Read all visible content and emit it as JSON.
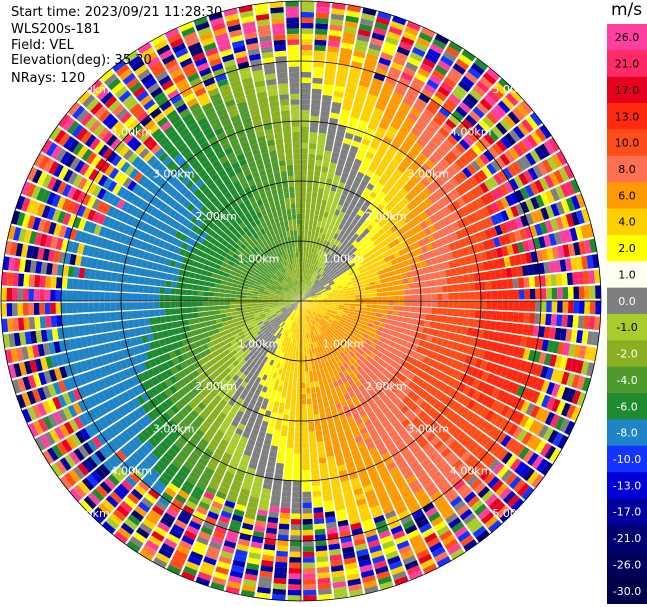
{
  "info": {
    "start_time": "Start time: 2023/09/21 11:28:30",
    "instrument": "WLS200s-181",
    "field": "Field: VEL",
    "elevation": "Elevation(deg): 35.30",
    "nrays": "NRays: 120"
  },
  "chart_data": {
    "type": "ppi",
    "nrays": 120,
    "elevation_deg": 35.3,
    "max_range_km": 5.0,
    "range_rings_km": [
      1.0,
      2.0,
      3.0,
      4.0,
      5.0
    ],
    "ring_label": "km",
    "colorbar": {
      "unit": "m/s",
      "ticks": [
        "26.0",
        "21.0",
        "17.0",
        "13.0",
        "10.0",
        "8.0",
        "6.0",
        "4.0",
        "2.0",
        "1.0",
        "0.0",
        "-1.0",
        "-2.0",
        "-4.0",
        "-6.0",
        "-8.0",
        "-10.0",
        "-13.0",
        "-17.0",
        "-21.0",
        "-26.0",
        "-30.0"
      ],
      "colors": [
        "#ff3f9f",
        "#ff2a66",
        "#e8001f",
        "#ff2a10",
        "#ff4d1a",
        "#ff7050",
        "#ff9a00",
        "#ffd000",
        "#ffff00",
        "#fffff0",
        "#7f7f7f",
        "#a8cc2c",
        "#88b020",
        "#4e9a2a",
        "#1e8c2e",
        "#1f83c8",
        "#1533ff",
        "#0000d8",
        "#00009e",
        "#000070",
        "#00005a",
        "#00004a"
      ]
    }
  }
}
